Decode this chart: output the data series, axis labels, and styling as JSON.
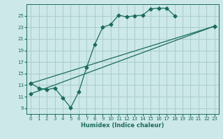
{
  "xlabel": "Humidex (Indice chaleur)",
  "xlim": [
    -0.5,
    23.5
  ],
  "ylim": [
    8.0,
    27.0
  ],
  "xticks": [
    0,
    1,
    2,
    3,
    4,
    5,
    6,
    7,
    8,
    9,
    10,
    11,
    12,
    13,
    14,
    15,
    16,
    17,
    18,
    19,
    20,
    21,
    22,
    23
  ],
  "yticks": [
    9,
    11,
    13,
    15,
    17,
    19,
    21,
    23,
    25
  ],
  "bg_color": "#cce8e8",
  "grid_color": "#aacccc",
  "line_color": "#1a6b5a",
  "line1_x": [
    0,
    1,
    2,
    3,
    4,
    5,
    6,
    7,
    8,
    9,
    10,
    11,
    12,
    13,
    14,
    15,
    16,
    17,
    18
  ],
  "line1_y": [
    13.3,
    12.5,
    12.2,
    12.5,
    10.8,
    9.1,
    11.8,
    16.1,
    20.0,
    23.0,
    23.5,
    25.1,
    24.8,
    25.0,
    25.1,
    26.2,
    26.3,
    26.3,
    25.0
  ],
  "line2_x": [
    0,
    23
  ],
  "line2_y": [
    13.3,
    23.2
  ],
  "line3_x": [
    0,
    23
  ],
  "line3_y": [
    11.5,
    23.2
  ]
}
